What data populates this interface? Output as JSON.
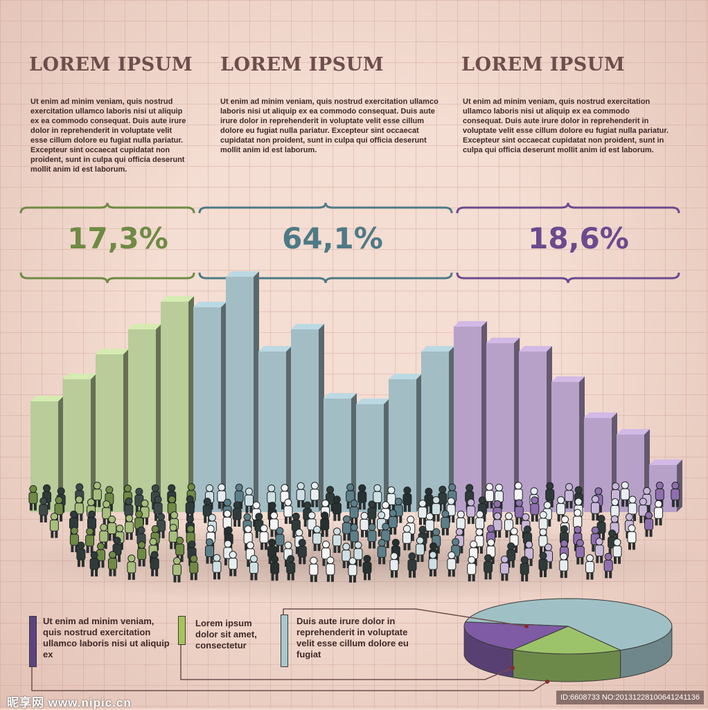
{
  "columns": [
    {
      "heading": "LOREM IPSUM",
      "text": "Ut enim ad minim veniam, quis nostrud exercitation ullamco laboris nisi ut aliquip ex ea commodo consequat. Duis aute irure dolor in reprehenderit in voluptate velit esse cillum dolore eu fugiat nulla pariatur. Excepteur sint occaecat cupidatat non proident, sunt in culpa qui officia deserunt mollit anim id est laborum.",
      "percent": "17,3%",
      "color": "#6f8a45"
    },
    {
      "heading": "LOREM IPSUM",
      "text": "Ut enim ad minim veniam, quis nostrud exercitation ullamco laboris nisi ut aliquip ex ea commodo consequat. Duis aute irure dolor in reprehenderit in voluptate velit esse cillum dolore eu fugiat nulla pariatur. Excepteur sint occaecat cupidatat non proident, sunt in culpa qui officia deserunt mollit anim id est laborum.",
      "percent": "64,1%",
      "color": "#4e7a86"
    },
    {
      "heading": "LOREM IPSUM",
      "text": "Ut enim ad minim veniam, quis nostrud exercitation ullamco laboris nisi ut aliquip ex ea commodo consequat. Duis aute irure dolor in reprehenderit in voluptate velit esse cillum dolore eu fugiat nulla pariatur. Excepteur sint occaecat cupidatat non proident, sunt in culpa qui officia deserunt mollit anim id est laborum.",
      "percent": "18,6%",
      "color": "#6b4a8e"
    }
  ],
  "legend": [
    {
      "text": "Ut enim ad minim veniam, quis nostrud exercitation ullamco laboris nisi ut aliquip ex",
      "color": "#5b4382"
    },
    {
      "text": "Lorem ipsum dolor sit amet, consectetur",
      "color": "#a6c45a"
    },
    {
      "text": "Duis aute irure dolor in reprehenderit in voluptate velit esse cillum dolore eu fugiat",
      "color": "#a9c8cc"
    }
  ],
  "watermark": {
    "site": "昵享网 www.nipic.cn",
    "id": "ID:6608733 NO:20131228100641241136"
  },
  "chart_data": [
    {
      "type": "bar",
      "series": [
        {
          "values": [
            40,
            48,
            57,
            66,
            76
          ],
          "color": "#b9cc9a"
        },
        {
          "values": [
            74,
            85,
            58,
            66,
            41,
            39,
            48,
            58
          ],
          "color": "#a3bdc5"
        },
        {
          "values": [
            67,
            61,
            58,
            47,
            34,
            28,
            17
          ],
          "color": "#b7a1c8"
        }
      ]
    },
    {
      "type": "pie",
      "slices": [
        {
          "value": 64.1,
          "color": "#9fc1c5"
        },
        {
          "value": 17.3,
          "color": "#9cc36a"
        },
        {
          "value": 18.6,
          "color": "#7e5ba4"
        }
      ]
    }
  ]
}
